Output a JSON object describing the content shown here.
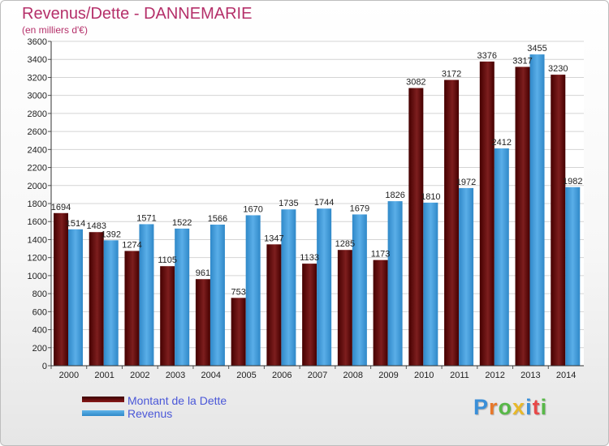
{
  "header": {
    "title": "Revenus/Dette - DANNEMARIE",
    "subtitle": "(en milliers d'€)"
  },
  "legend": {
    "dette_label": "Montant de la Dette",
    "revenus_label": "Revenus"
  },
  "logo": {
    "letters": [
      "P",
      "r",
      "o",
      "x",
      "i",
      "t",
      "i"
    ],
    "colors": [
      "#3a8fd8",
      "#e8782a",
      "#58b848",
      "#e8b82a",
      "#3a8fd8",
      "#e84848",
      "#58b848"
    ]
  },
  "colors": {
    "dette": "#7d1e1e",
    "dette_dark": "#450000",
    "revenus": "#5aaee8",
    "revenus_dark": "#2f88c8",
    "title": "#b5306a",
    "legend_text": "#4a57d8"
  },
  "chart_data": {
    "type": "bar",
    "title": "Revenus/Dette - DANNEMARIE",
    "subtitle": "(en milliers d'€)",
    "xlabel": "",
    "ylabel": "",
    "ylim": [
      0,
      3600
    ],
    "ytick_step": 200,
    "grid": true,
    "legend_position": "bottom-left",
    "categories": [
      "2000",
      "2001",
      "2002",
      "2003",
      "2004",
      "2005",
      "2006",
      "2007",
      "2008",
      "2009",
      "2010",
      "2011",
      "2012",
      "2013",
      "2014"
    ],
    "series": [
      {
        "name": "Montant de la Dette",
        "values": [
          1694,
          1483,
          1274,
          1105,
          961,
          753,
          1347,
          1133,
          1285,
          1173,
          3082,
          3172,
          3376,
          3317,
          3230
        ],
        "labels": [
          "1694",
          "1483",
          "1274",
          "1105",
          "961",
          "753",
          "1347",
          "1133",
          "1285",
          "1173",
          "3082",
          "3172",
          "3376",
          "3317",
          "3230"
        ]
      },
      {
        "name": "Revenus",
        "values": [
          1514,
          1392,
          1571,
          1522,
          1566,
          1670,
          1735,
          1744,
          1679,
          1826,
          1810,
          1972,
          2412,
          3455,
          1982
        ],
        "labels": [
          "1514",
          "1392",
          "1571",
          "1522",
          "1566",
          "1670",
          "1735",
          "1744",
          "1679",
          "1826",
          "1810",
          "1972",
          "2412",
          "3455",
          "1982"
        ]
      }
    ]
  }
}
